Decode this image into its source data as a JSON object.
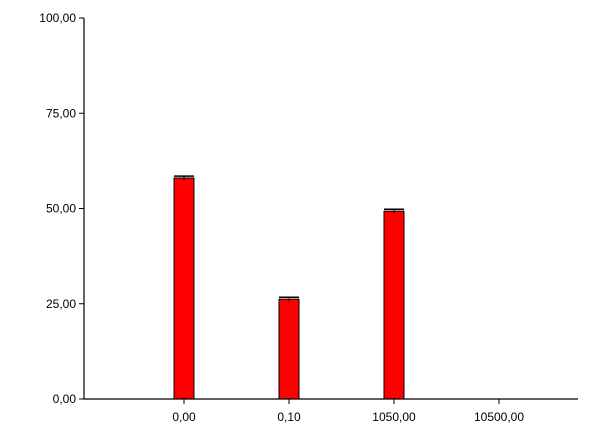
{
  "chart_data": {
    "type": "bar",
    "categories": [
      "0,00",
      "0,10",
      "1050,00",
      "10500,00"
    ],
    "values": [
      58.0,
      26.2,
      49.3,
      null
    ],
    "error_bars": [
      0.5,
      0.5,
      0.5,
      null
    ],
    "ylim": [
      0,
      100
    ],
    "y_ticks": [
      "0,00",
      "25,00",
      "50,00",
      "75,00",
      "100,00"
    ],
    "y_tick_values": [
      0,
      25,
      50,
      75,
      100
    ],
    "title": "",
    "xlabel": "",
    "ylabel": "",
    "grid": false,
    "legend": "none",
    "bar_color": "#ff0000",
    "bar_stroke": "#000000",
    "axis_color": "#000000"
  }
}
